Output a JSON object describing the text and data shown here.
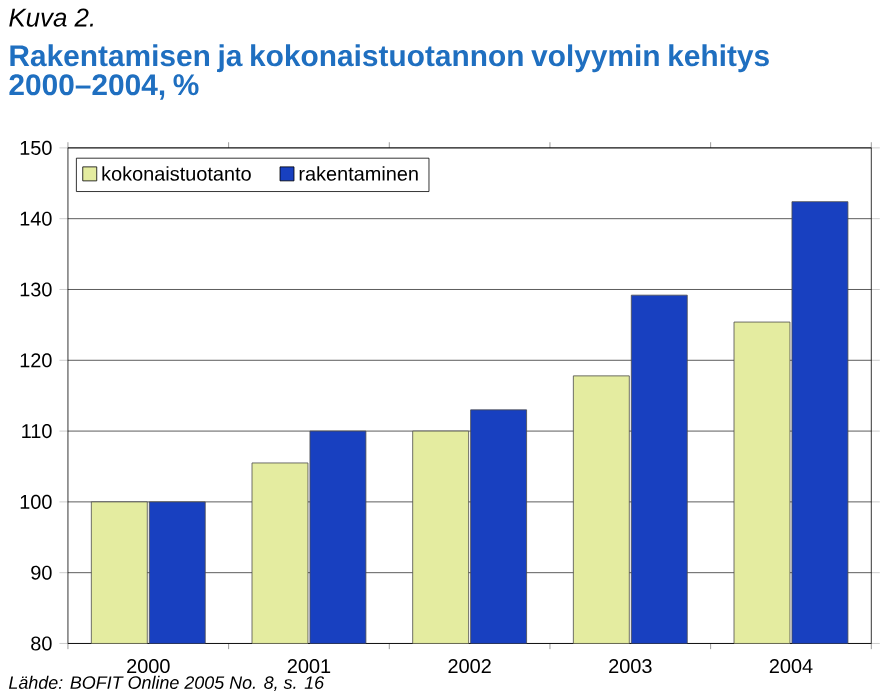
{
  "chart_data": {
    "type": "bar",
    "subtitle": "Kuva 2.",
    "title": "Rakentamisen ja kokonaistuotannon volyymin kehitys 2000–2004, %",
    "categories": [
      "2000",
      "2001",
      "2002",
      "2003",
      "2004"
    ],
    "series": [
      {
        "name": "kokonaistuotanto",
        "color": "#e4eca0",
        "values": [
          100,
          105.5,
          110,
          117.8,
          125.4
        ]
      },
      {
        "name": "rakentaminen",
        "color": "#1840c0",
        "values": [
          100,
          110,
          113,
          129.2,
          142.4
        ]
      }
    ],
    "ylim": [
      80,
      150
    ],
    "yticks": [
      80,
      90,
      100,
      110,
      120,
      130,
      140,
      150
    ],
    "grid": "y",
    "legend": "top left",
    "annotations": [
      "Lähde: BOFIT Online 2005 No. 8, s. 16"
    ]
  }
}
